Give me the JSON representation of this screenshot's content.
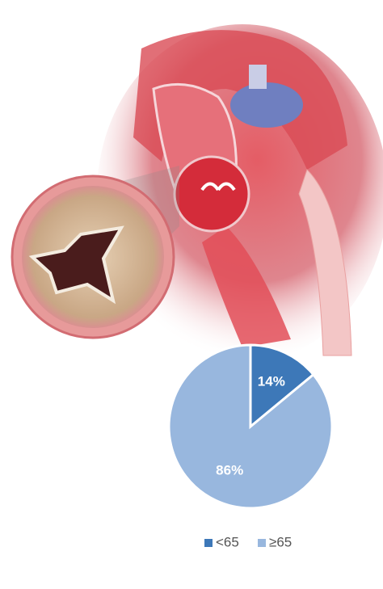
{
  "chart_data": {
    "type": "pie",
    "categories": [
      "<65",
      "≥65"
    ],
    "values": [
      14,
      86
    ],
    "value_labels": [
      "14%",
      "86%"
    ],
    "colors": [
      "#3d78b8",
      "#98b7de"
    ],
    "legend": "bottom"
  }
}
